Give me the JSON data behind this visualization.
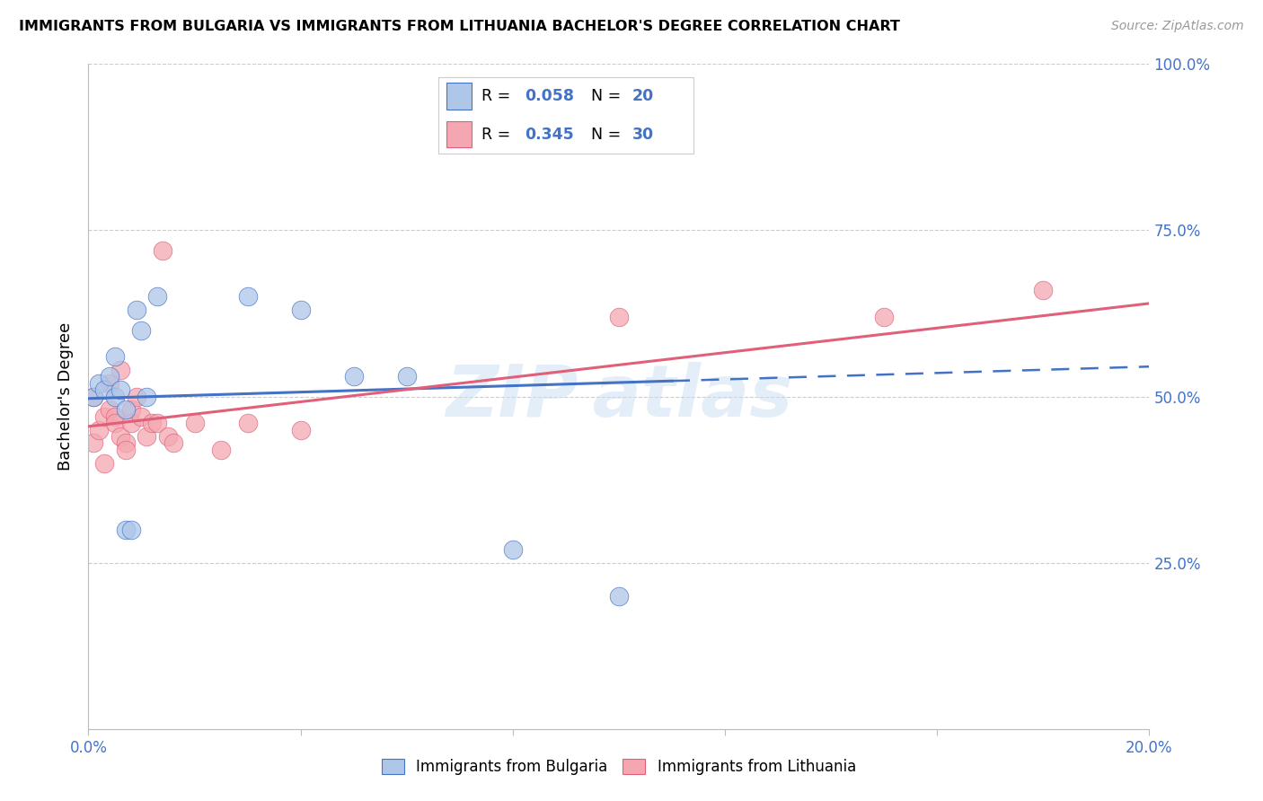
{
  "title": "IMMIGRANTS FROM BULGARIA VS IMMIGRANTS FROM LITHUANIA BACHELOR'S DEGREE CORRELATION CHART",
  "source": "Source: ZipAtlas.com",
  "ylabel": "Bachelor's Degree",
  "xlim": [
    0.0,
    0.2
  ],
  "ylim": [
    0.0,
    1.0
  ],
  "ytick_positions": [
    0.0,
    0.25,
    0.5,
    0.75,
    1.0
  ],
  "ytick_labels_right": [
    "",
    "25.0%",
    "50.0%",
    "75.0%",
    "100.0%"
  ],
  "xtick_positions": [
    0.0,
    0.04,
    0.08,
    0.12,
    0.16,
    0.2
  ],
  "xtick_labels": [
    "0.0%",
    "",
    "",
    "",
    "",
    "20.0%"
  ],
  "bulgaria_fill": "#aec6e8",
  "bulgaria_edge": "#4472c4",
  "lithuania_fill": "#f4a7b0",
  "lithuania_edge": "#e0607a",
  "line_blue": "#4472c4",
  "line_pink": "#e0607a",
  "label_color": "#4472c4",
  "bulgaria_R": "0.058",
  "bulgaria_N": "20",
  "lithuania_R": "0.345",
  "lithuania_N": "30",
  "watermark": "ZIPAtlas",
  "legend_label_bulgaria": "Immigrants from Bulgaria",
  "legend_label_lithuania": "Immigrants from Lithuania",
  "bulgaria_x": [
    0.001,
    0.002,
    0.003,
    0.004,
    0.005,
    0.005,
    0.006,
    0.007,
    0.007,
    0.008,
    0.009,
    0.01,
    0.011,
    0.013,
    0.03,
    0.04,
    0.05,
    0.06,
    0.08,
    0.1
  ],
  "bulgaria_y": [
    0.5,
    0.52,
    0.51,
    0.53,
    0.56,
    0.5,
    0.51,
    0.48,
    0.3,
    0.3,
    0.63,
    0.6,
    0.5,
    0.65,
    0.65,
    0.63,
    0.53,
    0.53,
    0.27,
    0.2
  ],
  "lithuania_x": [
    0.001,
    0.001,
    0.002,
    0.003,
    0.003,
    0.004,
    0.004,
    0.005,
    0.005,
    0.006,
    0.006,
    0.007,
    0.007,
    0.008,
    0.008,
    0.009,
    0.01,
    0.011,
    0.012,
    0.013,
    0.014,
    0.015,
    0.016,
    0.02,
    0.025,
    0.03,
    0.04,
    0.1,
    0.15,
    0.18
  ],
  "lithuania_y": [
    0.5,
    0.43,
    0.45,
    0.4,
    0.47,
    0.52,
    0.48,
    0.47,
    0.46,
    0.54,
    0.44,
    0.43,
    0.42,
    0.48,
    0.46,
    0.5,
    0.47,
    0.44,
    0.46,
    0.46,
    0.72,
    0.44,
    0.43,
    0.46,
    0.42,
    0.46,
    0.45,
    0.62,
    0.62,
    0.66
  ],
  "bulgaria_line_y0": 0.497,
  "bulgaria_line_y1": 0.545,
  "lithuania_line_y0": 0.455,
  "lithuania_line_y1": 0.64
}
